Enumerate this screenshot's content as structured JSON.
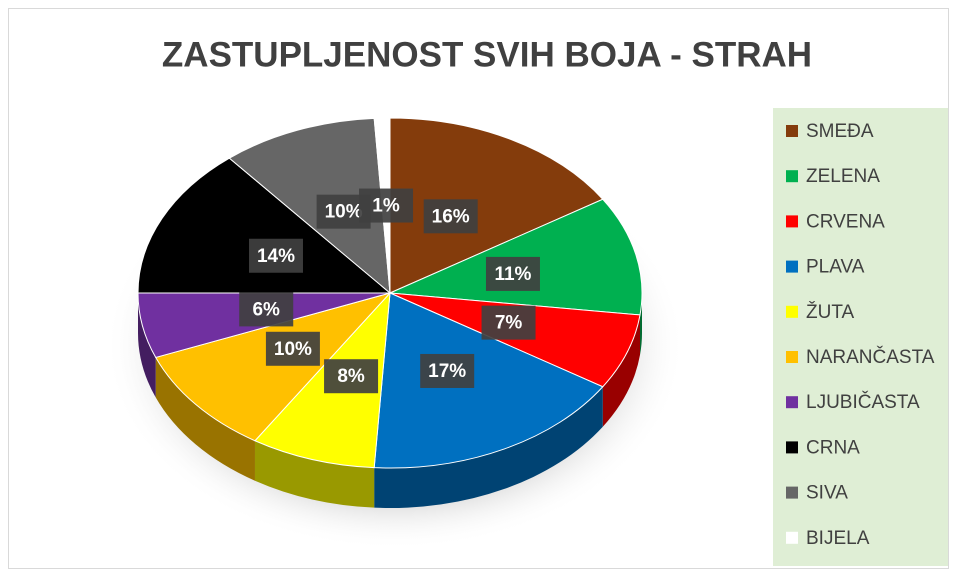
{
  "chart_data": {
    "type": "pie",
    "title": "ZASTUPLJENOST SVIH BOJA - STRAH",
    "categories": [
      "SMEĐA",
      "ZELENA",
      "CRVENA",
      "PLAVA",
      "ŽUTA",
      "NARANČASTA",
      "LJUBIČASTA",
      "CRNA",
      "SIVA",
      "BIJELA"
    ],
    "values": [
      16,
      11,
      7,
      17,
      8,
      10,
      6,
      14,
      10,
      1
    ],
    "value_labels": [
      "16%",
      "11%",
      "7%",
      "17%",
      "8%",
      "10%",
      "6%",
      "14%",
      "10%",
      "1%"
    ],
    "colors": [
      "#843c0c",
      "#00b050",
      "#ff0000",
      "#0070c0",
      "#ffff00",
      "#ffc000",
      "#7030a0",
      "#000000",
      "#666666",
      "#ffffff"
    ],
    "legend": "right"
  }
}
